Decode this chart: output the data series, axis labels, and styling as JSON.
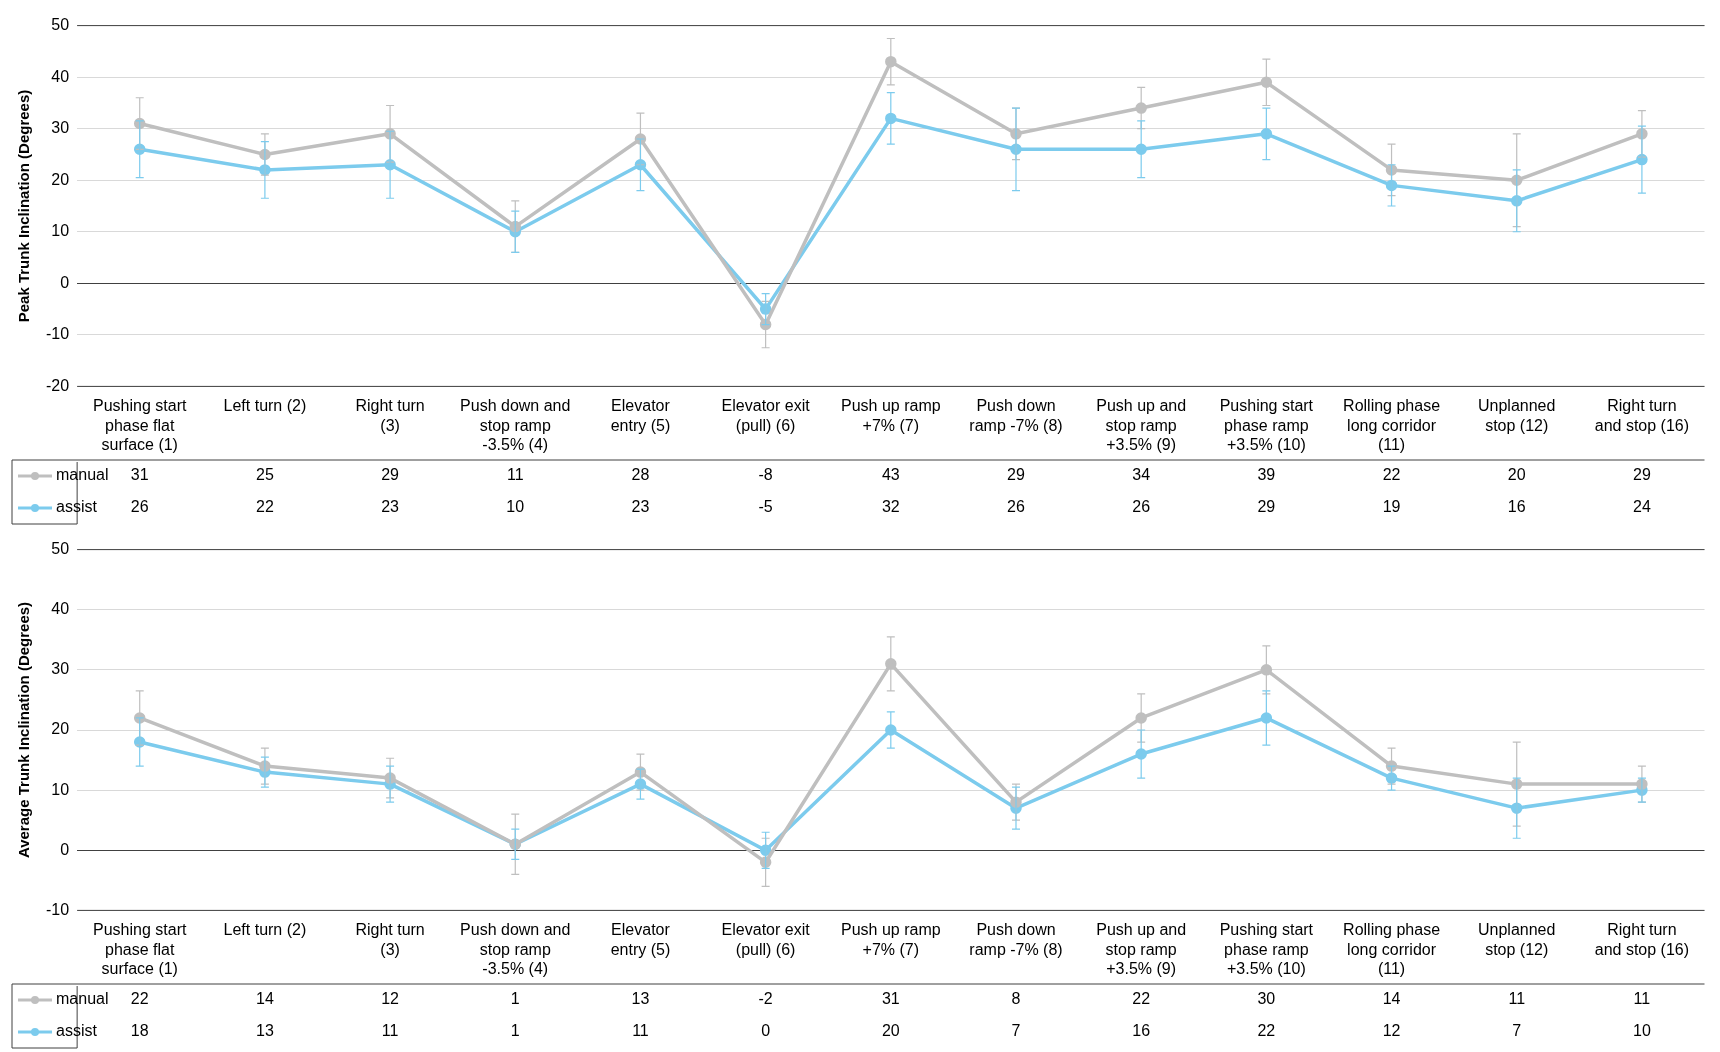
{
  "chart_data": [
    {
      "type": "line",
      "ylabel": "Peak Trunk Inclination (Degrees)",
      "categories": [
        "Pushing start phase flat surface (1)",
        "Left turn (2)",
        "Right turn (3)",
        "Push down and stop ramp -3.5% (4)",
        "Elevator entry (5)",
        "Elevator exit (pull) (6)",
        "Push up ramp +7% (7)",
        "Push down ramp -7% (8)",
        "Push up and stop ramp +3.5% (9)",
        "Pushing start phase ramp +3.5% (10)",
        "Rolling phase long corridor (11)",
        "Unplanned stop (12)",
        "Right turn and stop (16)"
      ],
      "series": [
        {
          "name": "manual",
          "color": "#bfbfbf",
          "values": [
            31,
            25,
            29,
            11,
            28,
            -8,
            43,
            29,
            34,
            39,
            22,
            20,
            29
          ],
          "errors": [
            5,
            4,
            5.5,
            5,
            5,
            4.5,
            4.5,
            5,
            4,
            4.5,
            5,
            9,
            4.5
          ]
        },
        {
          "name": "assist",
          "color": "#7ccbed",
          "values": [
            26,
            22,
            23,
            10,
            23,
            -5,
            32,
            26,
            26,
            29,
            19,
            16,
            24
          ],
          "errors": [
            5.5,
            5.5,
            6.5,
            4,
            5,
            3,
            5,
            8,
            5.5,
            5,
            4,
            6,
            6.5
          ]
        }
      ],
      "ylim": [
        -20,
        50
      ],
      "yticks": [
        -20,
        -10,
        0,
        10,
        20,
        30,
        40,
        50
      ],
      "grid": "y",
      "legend": "bottom left",
      "marker": "circle",
      "line_style": "solid",
      "data_labels": true
    },
    {
      "type": "line",
      "ylabel": "Average Trunk Inclination (Degrees)",
      "categories": [
        "Pushing start phase flat surface (1)",
        "Left turn (2)",
        "Right turn (3)",
        "Push down and stop ramp -3.5% (4)",
        "Elevator entry (5)",
        "Elevator exit (pull) (6)",
        "Push up ramp +7% (7)",
        "Push down ramp -7% (8)",
        "Push up and stop ramp +3.5% (9)",
        "Pushing start phase ramp +3.5% (10)",
        "Rolling phase long corridor (11)",
        "Unplanned stop (12)",
        "Right turn and stop (16)"
      ],
      "series": [
        {
          "name": "manual",
          "color": "#bfbfbf",
          "values": [
            22,
            14,
            12,
            1,
            13,
            -2,
            31,
            8,
            22,
            30,
            14,
            11,
            11
          ],
          "errors": [
            4.5,
            3,
            3.3,
            5,
            3,
            4,
            4.5,
            3,
            4,
            4,
            3,
            7,
            3
          ]
        },
        {
          "name": "assist",
          "color": "#7ccbed",
          "values": [
            18,
            13,
            11,
            1,
            11,
            0,
            20,
            7,
            16,
            22,
            12,
            7,
            10
          ],
          "errors": [
            4,
            2.5,
            3,
            2.5,
            2.5,
            3,
            3,
            3.5,
            4,
            4.5,
            2,
            5,
            2
          ]
        }
      ],
      "ylim": [
        -10,
        50
      ],
      "yticks": [
        -10,
        0,
        10,
        20,
        30,
        40,
        50
      ],
      "grid": "y",
      "legend": "bottom left",
      "marker": "circle",
      "line_style": "solid",
      "data_labels": true
    }
  ]
}
